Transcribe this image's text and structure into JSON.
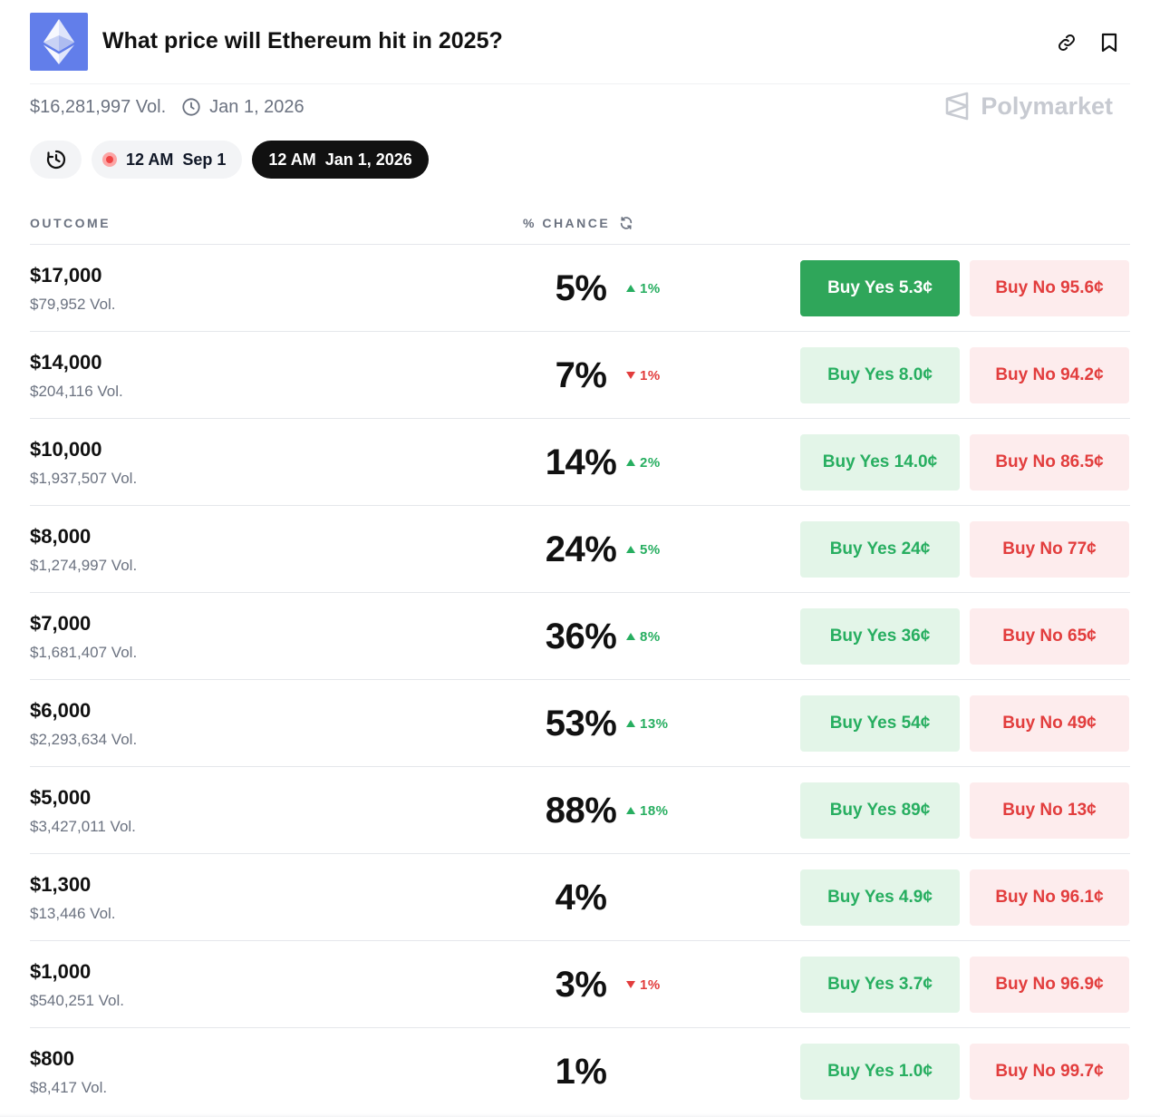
{
  "market": {
    "title": "What price will Ethereum hit in 2025?",
    "volume": "$16,281,997 Vol.",
    "end_date": "Jan 1, 2026",
    "brand": "Polymarket",
    "logo_color": "#627eea"
  },
  "date_filters": {
    "history_icon": "history-icon",
    "options": [
      {
        "label": "12 AM  Sep 1",
        "live": true,
        "active": false
      },
      {
        "label": "12 AM  Jan 1, 2026",
        "live": false,
        "active": true
      }
    ]
  },
  "table": {
    "col_outcome": "OUTCOME",
    "col_chance": "% CHANCE",
    "rows": [
      {
        "name": "$17,000",
        "vol": "$79,952 Vol.",
        "chance": "5%",
        "delta": "1%",
        "dir": "up",
        "yes": "Buy Yes 5.3¢",
        "no": "Buy No 95.6¢",
        "yes_selected": true
      },
      {
        "name": "$14,000",
        "vol": "$204,116 Vol.",
        "chance": "7%",
        "delta": "1%",
        "dir": "down",
        "yes": "Buy Yes 8.0¢",
        "no": "Buy No 94.2¢",
        "yes_selected": false
      },
      {
        "name": "$10,000",
        "vol": "$1,937,507 Vol.",
        "chance": "14%",
        "delta": "2%",
        "dir": "up",
        "yes": "Buy Yes 14.0¢",
        "no": "Buy No 86.5¢",
        "yes_selected": false
      },
      {
        "name": "$8,000",
        "vol": "$1,274,997 Vol.",
        "chance": "24%",
        "delta": "5%",
        "dir": "up",
        "yes": "Buy Yes 24¢",
        "no": "Buy No 77¢",
        "yes_selected": false
      },
      {
        "name": "$7,000",
        "vol": "$1,681,407 Vol.",
        "chance": "36%",
        "delta": "8%",
        "dir": "up",
        "yes": "Buy Yes 36¢",
        "no": "Buy No 65¢",
        "yes_selected": false
      },
      {
        "name": "$6,000",
        "vol": "$2,293,634 Vol.",
        "chance": "53%",
        "delta": "13%",
        "dir": "up",
        "yes": "Buy Yes 54¢",
        "no": "Buy No 49¢",
        "yes_selected": false
      },
      {
        "name": "$5,000",
        "vol": "$3,427,011 Vol.",
        "chance": "88%",
        "delta": "18%",
        "dir": "up",
        "yes": "Buy Yes 89¢",
        "no": "Buy No 13¢",
        "yes_selected": false
      },
      {
        "name": "$1,300",
        "vol": "$13,446 Vol.",
        "chance": "4%",
        "delta": "",
        "dir": "none",
        "yes": "Buy Yes 4.9¢",
        "no": "Buy No 96.1¢",
        "yes_selected": false
      },
      {
        "name": "$1,000",
        "vol": "$540,251 Vol.",
        "chance": "3%",
        "delta": "1%",
        "dir": "down",
        "yes": "Buy Yes 3.7¢",
        "no": "Buy No 96.9¢",
        "yes_selected": false
      },
      {
        "name": "$800",
        "vol": "$8,417 Vol.",
        "chance": "1%",
        "delta": "",
        "dir": "none",
        "yes": "Buy Yes 1.0¢",
        "no": "Buy No 99.7¢",
        "yes_selected": false
      }
    ]
  },
  "colors": {
    "yes": "#27ae60",
    "yes_bg": "#e3f5e8",
    "yes_selected_bg": "#2fa65a",
    "no": "#e23d3d",
    "no_bg": "#fdeced"
  }
}
